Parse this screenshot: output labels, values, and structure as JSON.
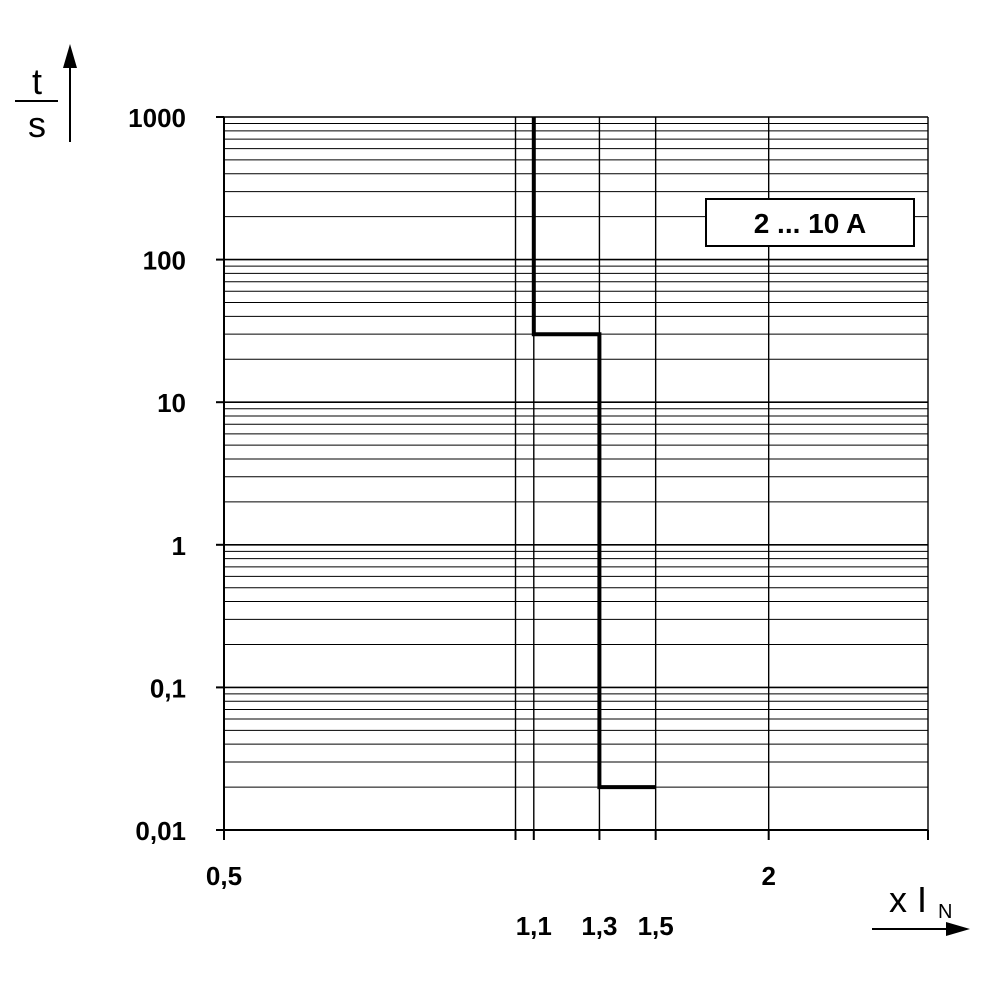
{
  "chart_data": {
    "type": "line",
    "x_scale": "log",
    "y_scale": "log",
    "xlim": [
      0.5,
      3.0
    ],
    "ylim": [
      0.01,
      1000
    ],
    "y_ticks": [
      {
        "value": 1000,
        "label": "1000"
      },
      {
        "value": 100,
        "label": "100"
      },
      {
        "value": 10,
        "label": "10"
      },
      {
        "value": 1,
        "label": "1"
      },
      {
        "value": 0.1,
        "label": "0,1"
      },
      {
        "value": 0.01,
        "label": "0,01"
      }
    ],
    "x_ticks_upper": [
      {
        "value": 0.5,
        "label": "0,5"
      },
      {
        "value": 2,
        "label": "2"
      }
    ],
    "x_ticks_lower": [
      {
        "value": 1.1,
        "label": "1,1"
      },
      {
        "value": 1.3,
        "label": "1,3"
      },
      {
        "value": 1.5,
        "label": "1,5"
      }
    ],
    "x_gridlines": [
      0.5,
      1.05,
      1.1,
      1.3,
      1.5,
      2,
      3
    ],
    "grid": true,
    "ylabel_top": "t",
    "ylabel_bottom": "s",
    "xlabel_prefix": "x I",
    "xlabel_subscript": "N",
    "legend": {
      "label": "2 ... 10 A",
      "placement": "top-right"
    },
    "series": [
      {
        "name": "2 ... 10 A",
        "points": [
          {
            "x": 1.1,
            "y": 1000
          },
          {
            "x": 1.1,
            "y": 30
          },
          {
            "x": 1.3,
            "y": 30
          },
          {
            "x": 1.3,
            "y": 0.02
          },
          {
            "x": 1.5,
            "y": 0.02
          }
        ]
      }
    ]
  }
}
